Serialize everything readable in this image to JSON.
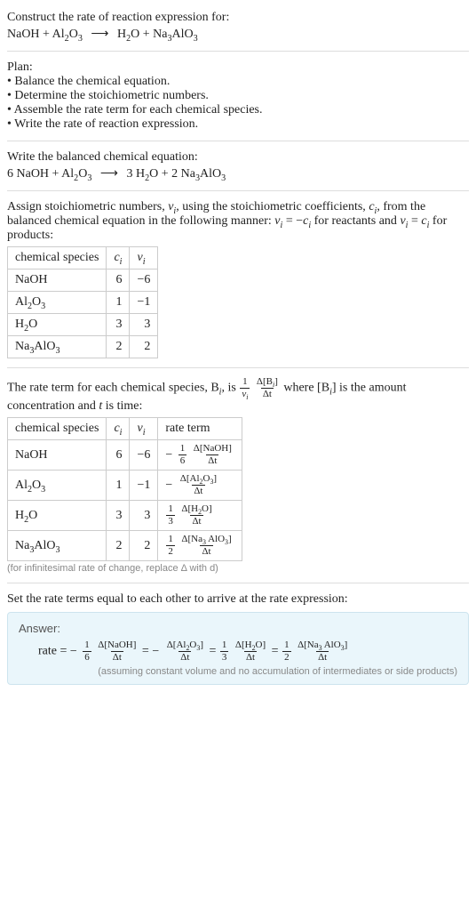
{
  "intro": {
    "title": "Construct the rate of reaction expression for:",
    "lhs1": "NaOH + Al",
    "lhs1_sub": "2",
    "lhs2": "O",
    "lhs2_sub": "3",
    "arrow": "⟶",
    "rhs1": "H",
    "rhs1_sub": "2",
    "rhs2": "O + Na",
    "rhs2_sub": "3",
    "rhs3": "AlO",
    "rhs3_sub": "3"
  },
  "plan": {
    "title": "Plan:",
    "b1": "• Balance the chemical equation.",
    "b2": "• Determine the stoichiometric numbers.",
    "b3": "• Assemble the rate term for each chemical species.",
    "b4": "• Write the rate of reaction expression."
  },
  "balance": {
    "title": "Write the balanced chemical equation:",
    "lhs1": "6 NaOH + Al",
    "lhs1_sub": "2",
    "lhs2": "O",
    "lhs2_sub": "3",
    "arrow": "⟶",
    "rhs1": "3 H",
    "rhs1_sub": "2",
    "rhs2": "O + 2 Na",
    "rhs2_sub": "3",
    "rhs3": "AlO",
    "rhs3_sub": "3"
  },
  "assign": {
    "p1": "Assign stoichiometric numbers, ",
    "nu": "ν",
    "i": "i",
    "p2": ", using the stoichiometric coefficients, ",
    "c": "c",
    "p3": ", from the balanced chemical equation in the following manner: ",
    "eq1a": " = −",
    "p4": " for reactants and ",
    "eq2a": " = ",
    "p5": " for products:"
  },
  "table1": {
    "h1": "chemical species",
    "h2c": "c",
    "h2i": "i",
    "h3n": "ν",
    "h3i": "i",
    "r1s": "NaOH",
    "r1c": "6",
    "r1v": "−6",
    "r2a": "Al",
    "r2s1": "2",
    "r2b": "O",
    "r2s2": "3",
    "r2c": "1",
    "r2v": "−1",
    "r3a": "H",
    "r3s1": "2",
    "r3b": "O",
    "r3c": "3",
    "r3v": "3",
    "r4a": "Na",
    "r4s1": "3",
    "r4b": "AlO",
    "r4s2": "3",
    "r4c": "2",
    "r4v": "2"
  },
  "rateterm": {
    "p1": "The rate term for each chemical species, B",
    "i": "i",
    "p2": ", is ",
    "one": "1",
    "nu": "ν",
    "dBi_n": "Δ[B",
    "dBi_n2": "]",
    "dt": "Δt",
    "p3": " where [B",
    "p4": "] is the amount concentration and ",
    "tvar": "t",
    "p5": " is time:"
  },
  "table2": {
    "h1": "chemical species",
    "h2c": "c",
    "h2i": "i",
    "h3n": "ν",
    "h3i": "i",
    "h4": "rate term",
    "r1s": "NaOH",
    "r1c": "6",
    "r1v": "−6",
    "r1_pre": "−",
    "r1_fn": "1",
    "r1_fd": "6",
    "r1_nn": "Δ[NaOH]",
    "r1_nd": "Δt",
    "r2a": "Al",
    "r2s1": "2",
    "r2b": "O",
    "r2s2": "3",
    "r2c": "1",
    "r2v": "−1",
    "r2_pre": "−",
    "r2_nn1": "Δ[Al",
    "r2_nn_s1": "2",
    "r2_nn2": "O",
    "r2_nn_s2": "3",
    "r2_nn3": "]",
    "r2_nd": "Δt",
    "r3a": "H",
    "r3s1": "2",
    "r3b": "O",
    "r3c": "3",
    "r3v": "3",
    "r3_fn": "1",
    "r3_fd": "3",
    "r3_nn1": "Δ[H",
    "r3_nn_s1": "2",
    "r3_nn2": "O]",
    "r3_nd": "Δt",
    "r4a": "Na",
    "r4s1": "3",
    "r4b": "AlO",
    "r4s2": "3",
    "r4c": "2",
    "r4v": "2",
    "r4_fn": "1",
    "r4_fd": "2",
    "r4_nn1": "Δ[Na",
    "r4_nn_s1": "3",
    "r4_nn2": " AlO",
    "r4_nn_s2": "3",
    "r4_nn3": "]",
    "r4_nd": "Δt",
    "footnote": "(for infinitesimal rate of change, replace Δ with d)"
  },
  "final": {
    "title": "Set the rate terms equal to each other to arrive at the rate expression:"
  },
  "answer": {
    "title": "Answer:",
    "rate": "rate = ",
    "neg": "−",
    "eq": " = ",
    "f1n": "1",
    "f1d": "6",
    "t1n": "Δ[NaOH]",
    "t1d": "Δt",
    "t2n1": "Δ[Al",
    "t2ns1": "2",
    "t2n2": "O",
    "t2ns2": "3",
    "t2n3": "]",
    "t2d": "Δt",
    "f3n": "1",
    "f3d": "3",
    "t3n1": "Δ[H",
    "t3ns1": "2",
    "t3n2": "O]",
    "t3d": "Δt",
    "f4n": "1",
    "f4d": "2",
    "t4n1": "Δ[Na",
    "t4ns1": "3",
    "t4n2": " AlO",
    "t4ns2": "3",
    "t4n3": "]",
    "t4d": "Δt",
    "note": "(assuming constant volume and no accumulation of intermediates or side products)"
  }
}
